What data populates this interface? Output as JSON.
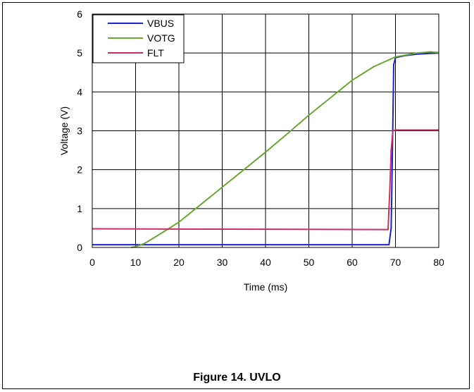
{
  "caption": "Figure 14. UVLO",
  "chart_data": {
    "type": "line",
    "xlabel": "Time (ms)",
    "ylabel": "Voltage (V)",
    "xlim": [
      0,
      80
    ],
    "ylim": [
      0,
      6
    ],
    "xticks": [
      0,
      10,
      20,
      30,
      40,
      50,
      60,
      70,
      80
    ],
    "yticks": [
      0,
      1,
      2,
      3,
      4,
      5,
      6
    ],
    "grid": true,
    "legend": "top-left",
    "series": [
      {
        "name": "VBUS",
        "color": "#1f1fd6",
        "x": [
          0,
          68.5,
          69.0,
          69.3,
          69.6,
          70,
          72,
          75,
          78,
          80
        ],
        "y": [
          0.07,
          0.07,
          0.5,
          2.5,
          4.7,
          4.88,
          4.93,
          4.97,
          4.99,
          5.0
        ]
      },
      {
        "name": "VOTG",
        "color": "#6aa832",
        "x": [
          9,
          10,
          12,
          15,
          20,
          25,
          30,
          35,
          40,
          45,
          50,
          55,
          60,
          65,
          70,
          75,
          78,
          80
        ],
        "y": [
          0,
          0.02,
          0.1,
          0.3,
          0.65,
          1.1,
          1.55,
          2.0,
          2.45,
          2.92,
          3.4,
          3.85,
          4.3,
          4.65,
          4.9,
          5.0,
          5.03,
          5.01
        ]
      },
      {
        "name": "FLT",
        "color": "#c8306a",
        "x": [
          0,
          68.3,
          68.7,
          69.0,
          69.4,
          70,
          80
        ],
        "y": [
          0.48,
          0.46,
          1.5,
          2.5,
          3.0,
          3.02,
          3.02
        ]
      }
    ]
  }
}
